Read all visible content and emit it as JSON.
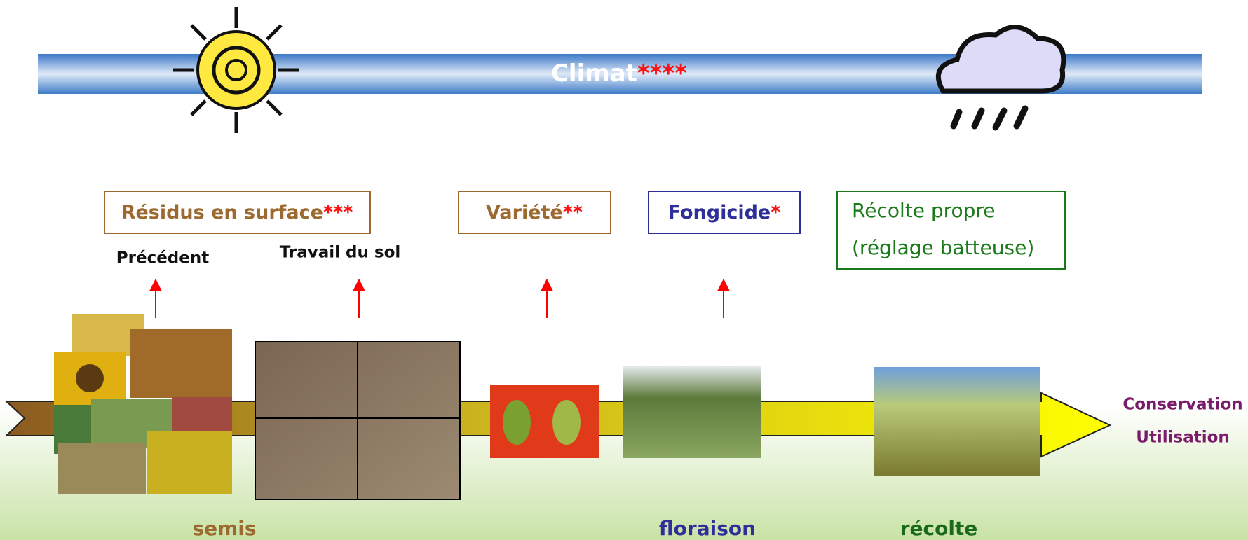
{
  "title": {
    "text": "Climat",
    "stars": "****"
  },
  "factors": [
    {
      "label": "Résidus en surface",
      "stars": "***"
    },
    {
      "label": "Variété",
      "stars": "**"
    },
    {
      "label": "Fongicide",
      "stars": "*"
    },
    {
      "lines": [
        "Récolte propre",
        "(réglage batteuse)"
      ]
    }
  ],
  "sublabels": [
    "Précédent",
    "Travail du sol"
  ],
  "stages": [
    "semis",
    "floraison",
    "récolte"
  ],
  "end_labels": [
    "Conservation",
    "Utilisation"
  ]
}
